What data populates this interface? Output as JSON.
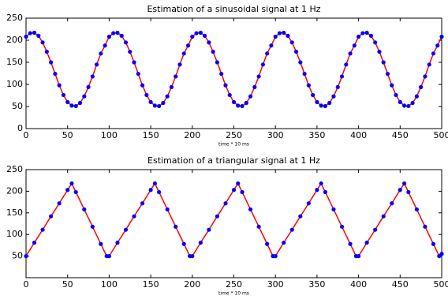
{
  "chart_data": [
    {
      "type": "line",
      "title": "Estimation of a sinusoidal signal at 1 Hz",
      "xlabel": "time * 10 ms",
      "x": [
        0,
        5,
        10,
        15,
        20,
        25,
        30,
        35,
        40,
        45,
        50,
        55,
        60,
        65,
        70,
        75,
        80,
        85,
        90,
        95,
        100,
        105,
        110,
        115,
        120,
        125,
        130,
        135,
        140,
        145,
        150,
        155,
        160,
        165,
        170,
        175,
        180,
        185,
        190,
        195,
        200,
        205,
        210,
        215,
        220,
        225,
        230,
        235,
        240,
        245,
        250,
        255,
        260,
        265,
        270,
        275,
        280,
        285,
        290,
        295,
        300,
        305,
        310,
        315,
        320,
        325,
        330,
        335,
        340,
        345,
        350,
        355,
        360,
        365,
        370,
        375,
        380,
        385,
        390,
        395,
        400,
        405,
        410,
        415,
        420,
        425,
        430,
        435,
        440,
        445,
        450,
        455,
        460,
        465,
        470,
        475,
        480,
        485,
        490,
        495,
        500
      ],
      "values": [
        208,
        216,
        217,
        210,
        195,
        174,
        150,
        124,
        98,
        76,
        60,
        52,
        51,
        58,
        73,
        94,
        118,
        145,
        170,
        188,
        208,
        216,
        217,
        210,
        195,
        174,
        150,
        124,
        98,
        76,
        60,
        52,
        51,
        58,
        73,
        94,
        118,
        145,
        170,
        188,
        208,
        216,
        217,
        210,
        195,
        174,
        150,
        124,
        98,
        76,
        60,
        52,
        51,
        58,
        73,
        94,
        118,
        145,
        170,
        188,
        208,
        216,
        217,
        210,
        195,
        174,
        150,
        124,
        98,
        76,
        60,
        52,
        51,
        58,
        73,
        94,
        118,
        145,
        170,
        188,
        208,
        216,
        217,
        210,
        195,
        174,
        150,
        124,
        98,
        76,
        60,
        52,
        51,
        58,
        73,
        94,
        118,
        145,
        170,
        188,
        208
      ],
      "color": "#ff0000",
      "marker_color": "#0000ff",
      "xlim": [
        0,
        500
      ],
      "xticks": [
        0,
        50,
        100,
        150,
        200,
        250,
        300,
        350,
        400,
        450,
        500
      ],
      "ylim": [
        0,
        250
      ],
      "yticks": [
        0,
        50,
        100,
        150,
        200,
        250
      ]
    },
    {
      "type": "line",
      "title": "Estimation of a triangular signal at 1 Hz",
      "xlabel": "time * 10 ms",
      "x": [
        0,
        10,
        20,
        30,
        40,
        50,
        55,
        60,
        70,
        80,
        90,
        97,
        100,
        110,
        120,
        130,
        140,
        150,
        155,
        160,
        170,
        180,
        190,
        197,
        200,
        210,
        220,
        230,
        240,
        250,
        255,
        260,
        270,
        280,
        290,
        297,
        300,
        310,
        320,
        330,
        340,
        350,
        355,
        360,
        370,
        380,
        390,
        397,
        400,
        410,
        420,
        430,
        440,
        450,
        455,
        460,
        470,
        480,
        490,
        497,
        500
      ],
      "values": [
        50,
        81,
        111,
        142,
        172,
        203,
        218,
        198,
        158,
        118,
        78,
        50,
        50,
        81,
        111,
        142,
        172,
        203,
        218,
        198,
        158,
        118,
        78,
        50,
        50,
        81,
        111,
        142,
        172,
        203,
        218,
        198,
        158,
        118,
        78,
        50,
        50,
        81,
        111,
        142,
        172,
        203,
        218,
        198,
        158,
        118,
        78,
        50,
        50,
        81,
        111,
        142,
        172,
        203,
        218,
        198,
        158,
        118,
        78,
        50,
        55
      ],
      "color": "#ff0000",
      "marker_color": "#0000ff",
      "xlim": [
        0,
        500
      ],
      "xticks": [
        0,
        50,
        100,
        150,
        200,
        250,
        300,
        350,
        400,
        450,
        500
      ],
      "ylim": [
        0,
        250
      ],
      "yticks": [
        50,
        100,
        150,
        200,
        250
      ]
    }
  ]
}
